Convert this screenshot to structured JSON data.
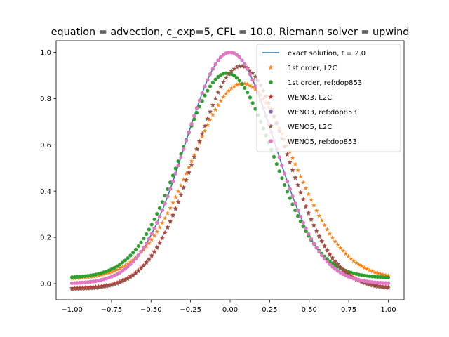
{
  "chart_data": {
    "type": "scatter",
    "title": "equation = advection, c_exp=5, CFL = 10.0, Riemann solver = upwind",
    "xlabel": "",
    "ylabel": "",
    "xlim": [
      -1.1,
      1.1
    ],
    "ylim": [
      -0.07,
      1.05
    ],
    "xticks": [
      -1.0,
      -0.75,
      -0.5,
      -0.25,
      0.0,
      0.25,
      0.5,
      0.75,
      1.0
    ],
    "xtick_labels": [
      "−1.00",
      "−0.75",
      "−0.50",
      "−0.25",
      "0.00",
      "0.25",
      "0.50",
      "0.75",
      "1.00"
    ],
    "yticks": [
      0.0,
      0.2,
      0.4,
      0.6,
      0.8,
      1.0
    ],
    "ytick_labels": [
      "0.0",
      "0.2",
      "0.4",
      "0.6",
      "0.8",
      "1.0"
    ],
    "grid": false,
    "legend_position": "top-right",
    "x_range": [
      -1.0,
      1.0
    ],
    "points_per_series": 120,
    "series": [
      {
        "name": "exact solution, t = 2.0",
        "kind": "line",
        "color": "#1f77b4",
        "profile": {
          "base": 0.0,
          "amplitude": 1.0,
          "shift": 0.0,
          "width": 0.4
        }
      },
      {
        "name": "1st order, L2C",
        "kind": "star",
        "color": "#ff7f0e",
        "profile": {
          "base": 0.02,
          "amplitude": 0.845,
          "shift": 0.08,
          "width": 0.455
        }
      },
      {
        "name": "1st order, ref:dop853",
        "kind": "dot",
        "color": "#2ca02c",
        "profile": {
          "base": 0.025,
          "amplitude": 0.885,
          "shift": -0.02,
          "width": 0.41
        }
      },
      {
        "name": "WENO3, L2C",
        "kind": "star",
        "color": "#d62728",
        "profile": {
          "base": -0.02,
          "amplitude": 0.96,
          "shift": 0.07,
          "width": 0.41
        }
      },
      {
        "name": "WENO3, ref:dop853",
        "kind": "dot",
        "color": "#9467bd",
        "profile": {
          "base": 0.0,
          "amplitude": 1.0,
          "shift": 0.0,
          "width": 0.4
        }
      },
      {
        "name": "WENO5, L2C",
        "kind": "star",
        "color": "#8c564b",
        "profile": {
          "base": -0.025,
          "amplitude": 0.965,
          "shift": 0.07,
          "width": 0.41
        }
      },
      {
        "name": "WENO5, ref:dop853",
        "kind": "dot",
        "color": "#e377c2",
        "profile": {
          "base": 0.0,
          "amplitude": 1.0,
          "shift": 0.0,
          "width": 0.4
        }
      }
    ]
  }
}
